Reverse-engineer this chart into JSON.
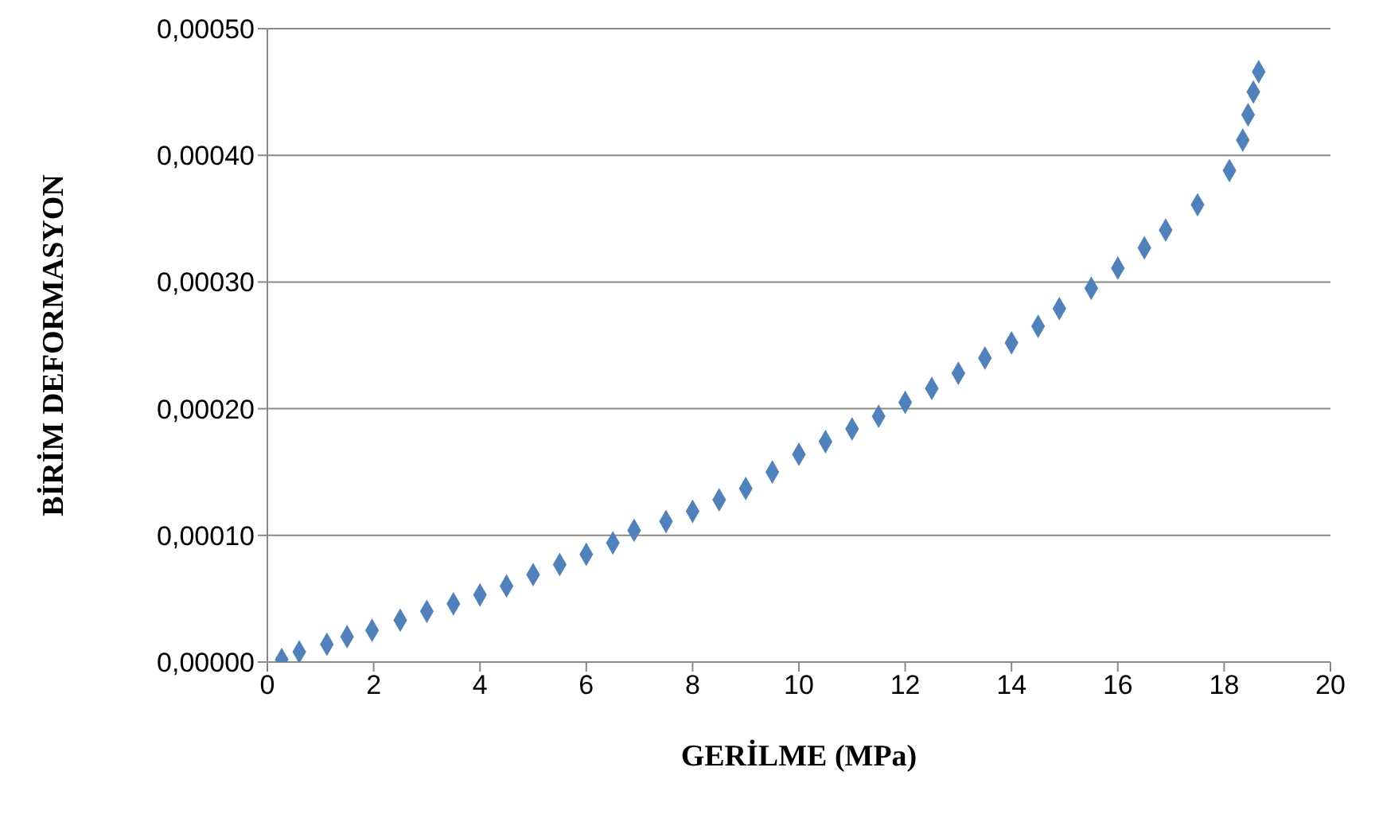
{
  "chart_data": {
    "type": "scatter",
    "xlabel": "GERİLME (MPa)",
    "ylabel": "BİRİM DEFORMASYON",
    "marker": "diamond",
    "grid": "y",
    "legend": false,
    "xlim": [
      0,
      20
    ],
    "xticks": [
      0,
      2,
      4,
      6,
      8,
      10,
      12,
      14,
      16,
      18,
      20
    ],
    "ylim": [
      0,
      0.0005
    ],
    "yticks": [
      {
        "value": 0,
        "label": "0,00000"
      },
      {
        "value": 0.0001,
        "label": "0,00010"
      },
      {
        "value": 0.0002,
        "label": "0,00020"
      },
      {
        "value": 0.0003,
        "label": "0,00030"
      },
      {
        "value": 0.0004,
        "label": "0,00040"
      },
      {
        "value": 0.0005,
        "label": "0,00050"
      }
    ],
    "series": [
      {
        "color": "#4f81bd",
        "x": [
          0.27,
          0.6,
          1.12,
          1.5,
          1.97,
          2.5,
          3.0,
          3.5,
          4.0,
          4.5,
          5.0,
          5.5,
          6.0,
          6.5,
          6.9,
          7.5,
          8.0,
          8.5,
          9.0,
          9.5,
          10.0,
          10.5,
          11.0,
          11.5,
          12.0,
          12.5,
          13.0,
          13.5,
          14.0,
          14.5,
          14.9,
          15.5,
          16.0,
          16.5,
          16.9,
          17.5,
          18.1,
          18.35,
          18.45,
          18.55,
          18.65
        ],
        "values": [
          2e-06,
          8e-06,
          1.4e-05,
          2e-05,
          2.5e-05,
          3.3e-05,
          4e-05,
          4.6e-05,
          5.3e-05,
          6e-05,
          6.9e-05,
          7.7e-05,
          8.5e-05,
          9.4e-05,
          0.000104,
          0.000111,
          0.000119,
          0.000128,
          0.000137,
          0.00015,
          0.000164,
          0.000174,
          0.000184,
          0.000194,
          0.000205,
          0.000216,
          0.000228,
          0.00024,
          0.000252,
          0.000265,
          0.000279,
          0.000295,
          0.000311,
          0.000327,
          0.000341,
          0.000361,
          0.000388,
          0.000412,
          0.000432,
          0.00045,
          0.000466
        ]
      }
    ]
  }
}
